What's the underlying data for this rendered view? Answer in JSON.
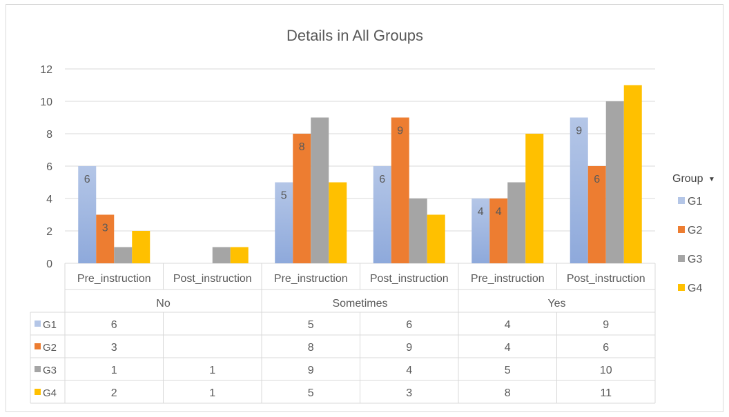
{
  "chart_data": {
    "type": "bar",
    "title": "Details in All Groups",
    "ylim": [
      0,
      12
    ],
    "yticks": [
      0,
      2,
      4,
      6,
      8,
      10,
      12
    ],
    "grid": true,
    "legend_placement": "right",
    "legend_title": "Group",
    "legend_dropdown": "▼",
    "groups": [
      {
        "label": "No",
        "categories": [
          "Pre_instruction",
          "Post_instruction"
        ]
      },
      {
        "label": "Sometimes",
        "categories": [
          "Pre_instruction",
          "Post_instruction"
        ]
      },
      {
        "label": "Yes",
        "categories": [
          "Pre_instruction",
          "Post_instruction"
        ]
      }
    ],
    "categories": [
      "Pre_instruction",
      "Post_instruction",
      "Pre_instruction",
      "Post_instruction",
      "Pre_instruction",
      "Post_instruction"
    ],
    "series": [
      {
        "name": "G1",
        "values": [
          6,
          null,
          5,
          6,
          4,
          9
        ]
      },
      {
        "name": "G2",
        "values": [
          3,
          null,
          8,
          9,
          4,
          6
        ]
      },
      {
        "name": "G3",
        "values": [
          1,
          1,
          9,
          4,
          5,
          10
        ]
      },
      {
        "name": "G4",
        "values": [
          2,
          1,
          5,
          3,
          8,
          11
        ]
      }
    ],
    "bar_labels": [
      [
        6,
        null,
        5,
        6,
        4,
        9
      ],
      [
        3,
        null,
        8,
        9,
        4,
        6
      ],
      [
        null,
        null,
        null,
        null,
        null,
        null
      ],
      [
        null,
        null,
        null,
        null,
        null,
        null
      ]
    ],
    "data_table": {
      "rows": [
        {
          "series": "G1",
          "cells": [
            "6",
            "",
            "5",
            "6",
            "4",
            "9"
          ]
        },
        {
          "series": "G2",
          "cells": [
            "3",
            "",
            "8",
            "9",
            "4",
            "6"
          ]
        },
        {
          "series": "G3",
          "cells": [
            "1",
            "1",
            "9",
            "4",
            "5",
            "10"
          ]
        },
        {
          "series": "G4",
          "cells": [
            "2",
            "1",
            "5",
            "3",
            "8",
            "11"
          ]
        }
      ]
    }
  },
  "colors": {
    "G1_top": "#b4c6e7",
    "G1_bottom": "#8ea9db",
    "G2": "#ed7d31",
    "G3": "#a5a5a5",
    "G4": "#ffc000",
    "grid": "#d9d9d9",
    "text": "#595959"
  }
}
